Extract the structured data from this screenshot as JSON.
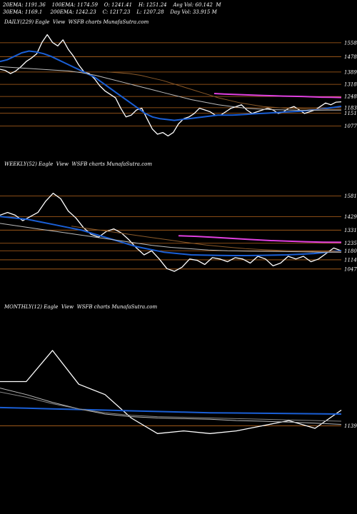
{
  "header": {
    "line1": "20EMA: 1191.36    100EMA: 1174.59    O: 1241.41    H: 1251.24    Avg Vol: 60.142  M",
    "line2": "30EMA: 1169.1     200EMA: 1242.23    C: 1217.23    L: 1207.28    Day Vol: 33.915 M"
  },
  "chart_data": [
    {
      "type": "line",
      "title": "DAILY(229) Eagle  View  WSFB charts MunafaSutra.com",
      "yticks": [
        1558,
        1478,
        1389,
        1318,
        1248,
        1183,
        1151,
        1077
      ],
      "ylim": [
        960,
        1640
      ],
      "series": [
        {
          "role": "price",
          "color": "#ffffff",
          "values": [
            1405,
            1398,
            1380,
            1395,
            1420,
            1450,
            1470,
            1495,
            1560,
            1605,
            1560,
            1540,
            1575,
            1520,
            1480,
            1430,
            1390,
            1380,
            1350,
            1310,
            1280,
            1260,
            1240,
            1180,
            1130,
            1140,
            1170,
            1180,
            1120,
            1060,
            1030,
            1040,
            1020,
            1040,
            1090,
            1120,
            1130,
            1150,
            1180,
            1170,
            1160,
            1140,
            1140,
            1160,
            1180,
            1190,
            1200,
            1170,
            1150,
            1160,
            1170,
            1180,
            1170,
            1150,
            1160,
            1180,
            1190,
            1170,
            1150,
            1160,
            1170,
            1190,
            1210,
            1200,
            1215,
            1217
          ]
        },
        {
          "role": "ema-blue",
          "color": "#1a5fd6",
          "values": [
            1450,
            1460,
            1480,
            1500,
            1510,
            1505,
            1495,
            1480,
            1460,
            1440,
            1420,
            1400,
            1380,
            1360,
            1330,
            1300,
            1270,
            1240,
            1210,
            1180,
            1150,
            1130,
            1120,
            1115,
            1110,
            1115,
            1120,
            1125,
            1130,
            1135,
            1140,
            1140,
            1140,
            1142,
            1145,
            1148,
            1150,
            1152,
            1155,
            1158,
            1160,
            1162,
            1165,
            1170,
            1175,
            1180,
            1185,
            1191
          ]
        },
        {
          "role": "ema-grey",
          "color": "#bbbbbb",
          "values": [
            1420,
            1415,
            1410,
            1405,
            1400,
            1395,
            1385,
            1370,
            1350,
            1330,
            1310,
            1290,
            1270,
            1250,
            1230,
            1215,
            1200,
            1190,
            1180,
            1175,
            1172,
            1170,
            1168,
            1168,
            1169,
            1169
          ]
        },
        {
          "role": "ema-brown",
          "color": "#8a5a2a",
          "values": [
            1390,
            1385,
            1380,
            1370,
            1355,
            1340,
            1320,
            1300,
            1280,
            1260,
            1240,
            1225,
            1210,
            1200,
            1190,
            1185,
            1180,
            1178,
            1176,
            1175,
            1174,
            1174
          ]
        },
        {
          "role": "ema-magenta",
          "color": "#e040e0",
          "values": [
            1265,
            1262,
            1260,
            1258,
            1256,
            1254,
            1252,
            1250,
            1249,
            1248,
            1246,
            1244,
            1243,
            1242
          ]
        }
      ]
    },
    {
      "type": "line",
      "title": "WEEKLY(52) Eagle  View  WSFB charts MunafaSutra.com",
      "yticks": [
        1581,
        1429,
        1331,
        1235,
        1180,
        1114,
        1047
      ],
      "ylim": [
        900,
        1760
      ],
      "series": [
        {
          "role": "price",
          "color": "#ffffff",
          "values": [
            1440,
            1460,
            1440,
            1400,
            1430,
            1460,
            1540,
            1600,
            1560,
            1470,
            1420,
            1350,
            1300,
            1280,
            1320,
            1340,
            1310,
            1260,
            1200,
            1150,
            1180,
            1120,
            1050,
            1030,
            1060,
            1120,
            1110,
            1080,
            1130,
            1120,
            1100,
            1130,
            1120,
            1090,
            1140,
            1120,
            1070,
            1090,
            1140,
            1120,
            1140,
            1100,
            1120,
            1160,
            1200,
            1180
          ]
        },
        {
          "role": "ema-blue",
          "color": "#1a5fd6",
          "values": [
            1430,
            1420,
            1410,
            1390,
            1370,
            1350,
            1330,
            1300,
            1270,
            1240,
            1210,
            1190,
            1170,
            1160,
            1150,
            1148,
            1146,
            1145,
            1145,
            1146,
            1148,
            1150,
            1155,
            1160,
            1170,
            1180
          ]
        },
        {
          "role": "ema-grey",
          "color": "#bbbbbb",
          "values": [
            1380,
            1360,
            1340,
            1320,
            1300,
            1280,
            1260,
            1240,
            1220,
            1205,
            1195,
            1185,
            1180,
            1178,
            1176,
            1174,
            1172,
            1170,
            1169
          ]
        },
        {
          "role": "ema-brown",
          "color": "#8a5a2a",
          "values": [
            1360,
            1340,
            1320,
            1300,
            1280,
            1260,
            1240,
            1222,
            1208,
            1196,
            1188,
            1182,
            1178,
            1175,
            1174
          ]
        },
        {
          "role": "ema-magenta",
          "color": "#e040e0",
          "values": [
            1290,
            1285,
            1278,
            1270,
            1262,
            1255,
            1250,
            1246,
            1243,
            1242
          ]
        }
      ]
    },
    {
      "type": "line",
      "title": "MONTHLY(12) Eagle  View  WSFB charts MunafaSutra.com",
      "yticks": [
        1139
      ],
      "ylim": [
        900,
        2000
      ],
      "series": [
        {
          "role": "price",
          "color": "#ffffff",
          "values": [
            1480,
            1480,
            1720,
            1460,
            1380,
            1200,
            1080,
            1100,
            1080,
            1100,
            1140,
            1180,
            1120,
            1260
          ]
        },
        {
          "role": "ema-blue",
          "color": "#1a5fd6",
          "values": [
            1280,
            1275,
            1270,
            1265,
            1260,
            1255,
            1250,
            1245,
            1240,
            1238,
            1236,
            1234,
            1232,
            1230
          ]
        },
        {
          "role": "ema-grey",
          "color": "#bbbbbb",
          "values": [
            1430,
            1380,
            1320,
            1270,
            1230,
            1210,
            1200,
            1195,
            1190,
            1180,
            1175,
            1168,
            1160,
            1150
          ]
        },
        {
          "role": "ema-grey2",
          "color": "#888888",
          "values": [
            1400,
            1360,
            1310,
            1270,
            1240,
            1220,
            1210,
            1205,
            1200,
            1195,
            1190,
            1185,
            1180,
            1175
          ]
        }
      ]
    }
  ]
}
